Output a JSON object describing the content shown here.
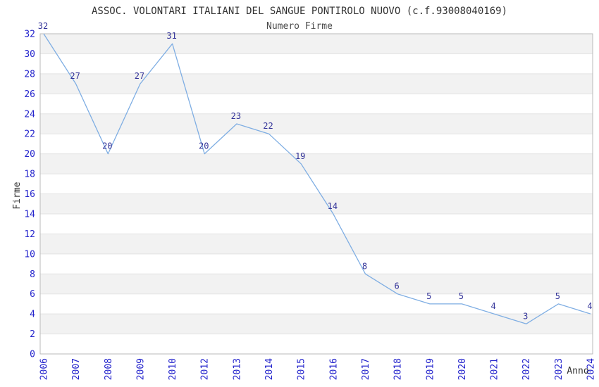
{
  "chart_data": {
    "type": "line",
    "title": "ASSOC. VOLONTARI ITALIANI DEL SANGUE PONTIROLO NUOVO (c.f.93008040169)",
    "subtitle": "Numero Firme",
    "xlabel": "Anno",
    "ylabel": "Firme",
    "categories": [
      "2006",
      "2007",
      "2008",
      "2009",
      "2010",
      "2012",
      "2013",
      "2014",
      "2015",
      "2016",
      "2017",
      "2018",
      "2019",
      "2020",
      "2021",
      "2022",
      "2023",
      "2024"
    ],
    "values": [
      32,
      27,
      20,
      27,
      31,
      20,
      23,
      22,
      19,
      14,
      8,
      6,
      5,
      5,
      4,
      3,
      5,
      4
    ],
    "ylim": [
      0,
      32
    ],
    "ytick_step": 2,
    "grid": true,
    "legend": "none",
    "colors": {
      "line": "#7FAEE3",
      "data_label": "#333399",
      "tick_label": "#2323CC",
      "band_fill": "#F2F2F2",
      "gridline": "#E3E3E3",
      "frame": "#B9B9B9",
      "title": "#333333"
    }
  }
}
